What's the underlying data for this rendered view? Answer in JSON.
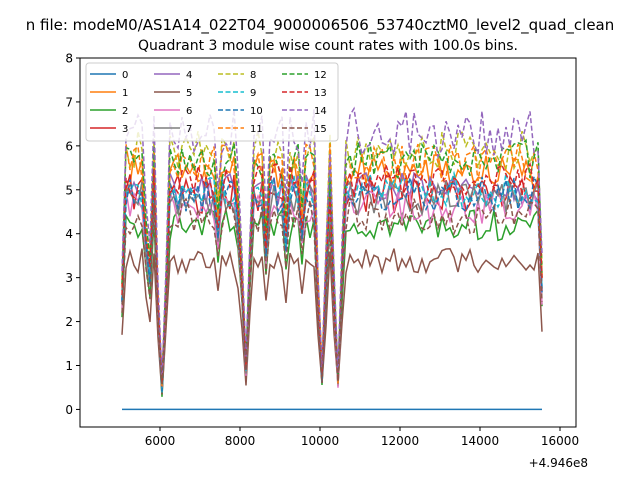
{
  "figure": {
    "suptitle": "n file: modeM0/AS1A14_022T04_9000006506_53740cztM0_level2_quad_clean",
    "title": "Quadrant 3 module wise count rates with 100.0s bins.",
    "x_offset_label": "+4.946e8"
  },
  "chart_data": {
    "type": "line",
    "title": "Quadrant 3 module wise count rates with 100.0s bins.",
    "suptitle": "n file: modeM0/AS1A14_022T04_9000006506_53740cztM0_level2_quad_clean",
    "xlabel": "",
    "ylabel": "",
    "x_offset": 494600000,
    "xlim": [
      4000,
      16400
    ],
    "ylim": [
      -0.4,
      8
    ],
    "xticks": [
      6000,
      8000,
      10000,
      12000,
      14000,
      16000
    ],
    "yticks": [
      0,
      1,
      2,
      3,
      4,
      5,
      6,
      7,
      8
    ],
    "grid": false,
    "legend": {
      "placement": "upper-left",
      "columns": 4
    },
    "x": [
      5050,
      5150,
      5250,
      5350,
      5450,
      5550,
      5650,
      5750,
      5850,
      5950,
      6050,
      6150,
      6250,
      6350,
      6450,
      6550,
      6650,
      6750,
      6850,
      6950,
      7050,
      7150,
      7250,
      7350,
      7450,
      7550,
      7650,
      7750,
      7850,
      7950,
      8050,
      8150,
      8250,
      8350,
      8450,
      8550,
      8650,
      8750,
      8850,
      8950,
      9050,
      9150,
      9250,
      9350,
      9450,
      9550,
      9650,
      9750,
      9850,
      9950,
      10050,
      10150,
      10250,
      10350,
      10450,
      10550,
      10650,
      10750,
      10850,
      10950,
      11050,
      11150,
      11250,
      11350,
      11450,
      11550,
      11650,
      11750,
      11850,
      11950,
      12050,
      12150,
      12250,
      12350,
      12450,
      12550,
      12650,
      12750,
      12850,
      12950,
      13050,
      13150,
      13250,
      13350,
      13450,
      13550,
      13650,
      13750,
      13850,
      13950,
      14050,
      14150,
      14250,
      14350,
      14450,
      14550,
      14650,
      14750,
      14850,
      14950,
      15050,
      15150,
      15250,
      15350,
      15450,
      15550
    ],
    "dips": {
      "6050": 0.1,
      "8150": 0.17,
      "10050": 0.15,
      "10450": 0.13,
      "5750": 0.6,
      "5650": 0.75,
      "5950": 0.45,
      "6150": 0.5,
      "8050": 0.55,
      "8250": 0.65,
      "9950": 0.5,
      "10150": 0.6,
      "10350": 0.5,
      "10550": 0.6,
      "7450": 0.8,
      "7950": 0.85,
      "8650": 0.7,
      "9150": 0.75,
      "9550": 0.8,
      "15550": 0.55
    },
    "series": [
      {
        "name": "0",
        "color": "#1f77b4",
        "dash": false,
        "level": 0.0,
        "noise": 0.0
      },
      {
        "name": "1",
        "color": "#ff7f0e",
        "dash": false,
        "level": 5.4,
        "noise": 0.45
      },
      {
        "name": "2",
        "color": "#2ca02c",
        "dash": false,
        "level": 4.2,
        "noise": 0.35
      },
      {
        "name": "3",
        "color": "#d62728",
        "dash": false,
        "level": 4.9,
        "noise": 0.45
      },
      {
        "name": "4",
        "color": "#9467bd",
        "dash": false,
        "level": 5.0,
        "noise": 0.4
      },
      {
        "name": "5",
        "color": "#8c564b",
        "dash": false,
        "level": 3.4,
        "noise": 0.3
      },
      {
        "name": "6",
        "color": "#e377c2",
        "dash": false,
        "level": 4.6,
        "noise": 0.4
      },
      {
        "name": "7",
        "color": "#7f7f7f",
        "dash": false,
        "level": 4.8,
        "noise": 0.4
      },
      {
        "name": "8",
        "color": "#bcbd22",
        "dash": true,
        "level": 5.9,
        "noise": 0.45
      },
      {
        "name": "9",
        "color": "#17becf",
        "dash": true,
        "level": 5.0,
        "noise": 0.4
      },
      {
        "name": "10",
        "color": "#1f77b4",
        "dash": true,
        "level": 4.9,
        "noise": 0.4
      },
      {
        "name": "11",
        "color": "#ff7f0e",
        "dash": true,
        "level": 5.6,
        "noise": 0.45
      },
      {
        "name": "12",
        "color": "#2ca02c",
        "dash": true,
        "level": 5.7,
        "noise": 0.45
      },
      {
        "name": "13",
        "color": "#d62728",
        "dash": true,
        "level": 5.2,
        "noise": 0.4
      },
      {
        "name": "14",
        "color": "#9467bd",
        "dash": true,
        "level": 6.3,
        "noise": 0.55
      },
      {
        "name": "15",
        "color": "#8c564b",
        "dash": true,
        "level": 4.4,
        "noise": 0.4
      }
    ]
  }
}
